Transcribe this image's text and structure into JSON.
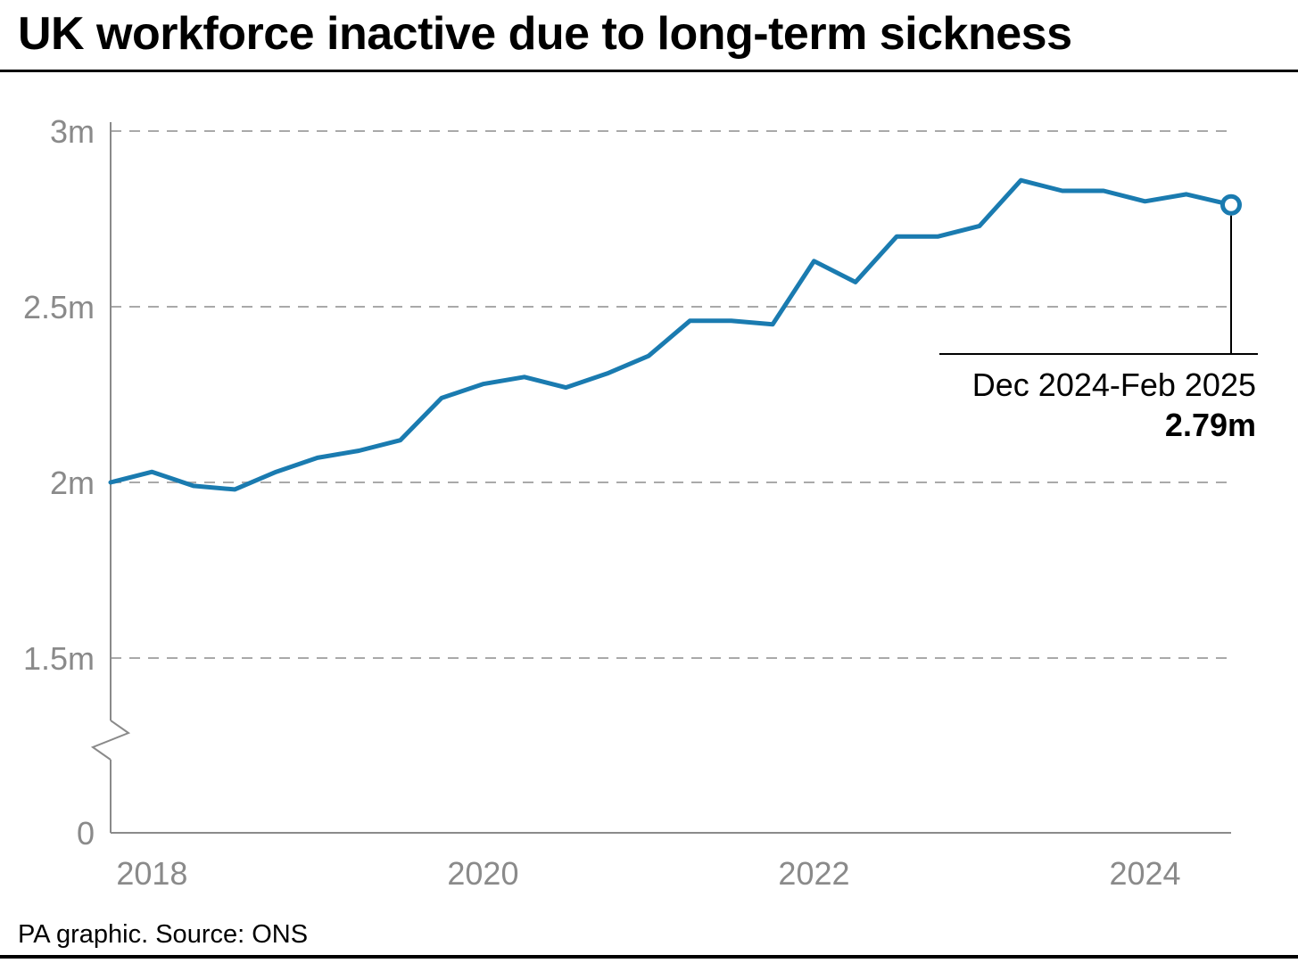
{
  "title": "UK workforce inactive due to long-term sickness",
  "source": "PA graphic. Source: ONS",
  "colors": {
    "line": "#1a7bb0",
    "grid": "#a9a9a9",
    "axis": "#8a8a8a",
    "text": "#000000"
  },
  "chart_data": {
    "type": "line",
    "title": "UK workforce inactive due to long-term sickness",
    "xlabel": "",
    "ylabel": "",
    "y_axis_break": true,
    "ylim": [
      0,
      3000000
    ],
    "yticks": [
      {
        "value": 0,
        "label": "0"
      },
      {
        "value": 1500000,
        "label": "1.5m"
      },
      {
        "value": 2000000,
        "label": "2m"
      },
      {
        "value": 2500000,
        "label": "2.5m"
      },
      {
        "value": 3000000,
        "label": "3m"
      }
    ],
    "xlim": [
      2017.9,
      2024.67
    ],
    "xticks": [
      {
        "value": 2018.15,
        "label": "2018"
      },
      {
        "value": 2020.15,
        "label": "2020"
      },
      {
        "value": 2022.15,
        "label": "2022"
      },
      {
        "value": 2024.15,
        "label": "2024"
      }
    ],
    "grid": true,
    "series": [
      {
        "name": "Inactive due to long-term sickness",
        "x": [
          2017.9,
          2018.15,
          2018.4,
          2018.65,
          2018.9,
          2019.15,
          2019.4,
          2019.65,
          2019.9,
          2020.15,
          2020.4,
          2020.65,
          2020.9,
          2021.15,
          2021.4,
          2021.65,
          2021.9,
          2022.15,
          2022.4,
          2022.65,
          2022.9,
          2023.15,
          2023.4,
          2023.65,
          2023.9,
          2024.15,
          2024.4,
          2024.67
        ],
        "values": [
          2000000,
          2030000,
          1990000,
          1980000,
          2030000,
          2070000,
          2090000,
          2120000,
          2240000,
          2280000,
          2300000,
          2270000,
          2310000,
          2360000,
          2460000,
          2460000,
          2450000,
          2630000,
          2570000,
          2700000,
          2700000,
          2730000,
          2860000,
          2830000,
          2830000,
          2800000,
          2820000,
          2790000
        ]
      }
    ],
    "annotations": [
      {
        "period": "Dec 2024-Feb 2025",
        "value_label": "2.79m",
        "x": 2024.67,
        "value": 2790000
      }
    ]
  }
}
